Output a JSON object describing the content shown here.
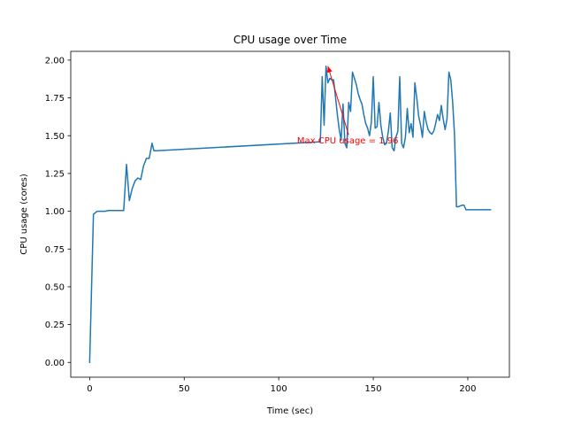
{
  "chart_data": {
    "type": "line",
    "title": "CPU usage over Time",
    "xlabel": "Time (sec)",
    "ylabel": "CPU usage (cores)",
    "xlim": [
      -10,
      222
    ],
    "ylim": [
      -0.098,
      2.058
    ],
    "xticks": [
      0,
      50,
      100,
      150,
      200
    ],
    "yticks": [
      0.0,
      0.25,
      0.5,
      0.75,
      1.0,
      1.25,
      1.5,
      1.75,
      2.0
    ],
    "ytick_labels": [
      "0.00",
      "0.25",
      "0.50",
      "0.75",
      "1.00",
      "1.25",
      "1.50",
      "1.75",
      "2.00"
    ],
    "grid": false,
    "series": [
      {
        "color": "#1f77b4",
        "x": [
          0,
          2,
          4,
          6,
          8,
          10,
          12,
          14,
          16,
          18,
          19.5,
          21,
          22.5,
          24,
          25.5,
          27,
          28.5,
          30,
          31.5,
          33,
          34,
          35.5,
          122,
          123,
          124,
          125,
          126,
          127,
          128,
          129,
          130,
          131,
          132,
          133,
          134,
          135,
          136,
          137,
          138,
          139,
          140,
          141,
          142,
          143,
          144,
          145,
          146,
          147,
          148,
          149,
          150,
          151,
          152,
          153,
          154,
          155,
          156,
          157,
          158,
          159,
          160,
          161,
          162,
          163,
          164,
          165,
          166,
          167,
          168,
          169,
          170,
          171,
          172,
          173,
          174,
          175,
          176,
          177,
          178,
          179,
          180,
          181,
          182,
          183,
          184,
          185,
          186,
          187,
          188,
          189,
          190,
          191,
          192,
          193,
          194,
          195,
          196,
          197,
          198,
          199,
          200,
          201,
          202,
          203,
          204,
          205,
          206,
          207,
          208,
          209,
          210,
          211,
          212
        ],
        "y": [
          0.0,
          0.98,
          1.0,
          1.0,
          1.0,
          1.005,
          1.005,
          1.005,
          1.005,
          1.005,
          1.31,
          1.07,
          1.15,
          1.2,
          1.22,
          1.21,
          1.3,
          1.35,
          1.35,
          1.45,
          1.4,
          1.4,
          1.46,
          1.89,
          1.57,
          1.96,
          1.85,
          1.88,
          1.87,
          1.87,
          1.76,
          1.64,
          1.54,
          1.47,
          1.71,
          1.45,
          1.42,
          1.72,
          1.66,
          1.92,
          1.88,
          1.84,
          1.78,
          1.74,
          1.71,
          1.64,
          1.58,
          1.55,
          1.5,
          1.59,
          1.89,
          1.55,
          1.56,
          1.72,
          1.57,
          1.49,
          1.44,
          1.45,
          1.53,
          1.65,
          1.42,
          1.4,
          1.49,
          1.53,
          1.89,
          1.45,
          1.42,
          1.49,
          1.68,
          1.52,
          1.58,
          1.49,
          1.85,
          1.75,
          1.63,
          1.57,
          1.49,
          1.66,
          1.59,
          1.54,
          1.52,
          1.51,
          1.53,
          1.58,
          1.64,
          1.6,
          1.7,
          1.61,
          1.54,
          1.61,
          1.92,
          1.87,
          1.72,
          1.5,
          1.03,
          1.03,
          1.035,
          1.04,
          1.04,
          1.01,
          1.01,
          1.01,
          1.01,
          1.01,
          1.01,
          1.01,
          1.01,
          1.01,
          1.01,
          1.01,
          1.01,
          1.01,
          1.01
        ]
      }
    ],
    "annotations": [
      {
        "text": "Max CPU usage = 1.96",
        "color": "#ff0000",
        "point": [
          126,
          1.96
        ],
        "text_at": [
          136.5,
          1.47
        ],
        "arrow": true
      }
    ]
  }
}
